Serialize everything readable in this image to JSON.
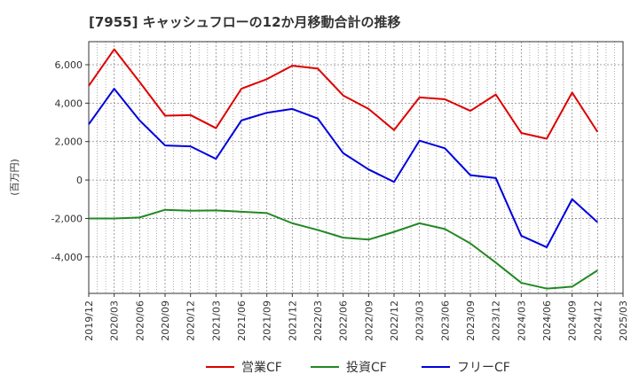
{
  "chart_data": {
    "type": "line",
    "title": "[7955]  キャッシュフローの12か月移動合計の推移",
    "ylabel": "(百万円)",
    "xlabel": "",
    "ylim": [
      -5900,
      7200
    ],
    "yticks": [
      -4000,
      -2000,
      0,
      2000,
      4000,
      6000
    ],
    "ytick_labels": [
      "-4,000",
      "-2,000",
      "0",
      "2,000",
      "4,000",
      "6,000"
    ],
    "xtick_labels": [
      "2019/12",
      "2020/03",
      "2020/06",
      "2020/09",
      "2020/12",
      "2021/03",
      "2021/06",
      "2021/09",
      "2021/12",
      "2022/03",
      "2022/06",
      "2022/09",
      "2022/12",
      "2023/03",
      "2023/06",
      "2023/09",
      "2023/12",
      "2024/03",
      "2024/06",
      "2024/09",
      "2024/12",
      "2025/03"
    ],
    "grid": true,
    "legend_position": "bottom",
    "x": [
      "2019/12",
      "2020/03",
      "2020/06",
      "2020/09",
      "2020/12",
      "2021/03",
      "2021/06",
      "2021/09",
      "2021/12",
      "2022/03",
      "2022/06",
      "2022/09",
      "2022/12",
      "2023/03",
      "2023/06",
      "2023/09",
      "2023/12",
      "2024/03",
      "2024/06",
      "2024/09",
      "2024/12"
    ],
    "series": [
      {
        "name": "営業CF",
        "color": "#dd0000",
        "values": [
          4900,
          6800,
          5100,
          3350,
          3380,
          2700,
          4750,
          5250,
          5950,
          5800,
          4400,
          3700,
          2600,
          4300,
          4200,
          3600,
          4450,
          2450,
          2150,
          4550,
          2500
        ]
      },
      {
        "name": "投資CF",
        "color": "#228822",
        "values": [
          -2000,
          -2000,
          -1950,
          -1550,
          -1600,
          -1580,
          -1650,
          -1720,
          -2250,
          -2600,
          -3000,
          -3100,
          -2700,
          -2250,
          -2550,
          -3300,
          -4300,
          -5350,
          -5650,
          -5550,
          -4700
        ]
      },
      {
        "name": "フリーCF",
        "color": "#0000dd",
        "values": [
          2900,
          4750,
          3100,
          1800,
          1750,
          1100,
          3100,
          3500,
          3700,
          3200,
          1400,
          550,
          -100,
          2050,
          1650,
          250,
          100,
          -2900,
          -3500,
          -1000,
          -2200
        ]
      }
    ]
  }
}
